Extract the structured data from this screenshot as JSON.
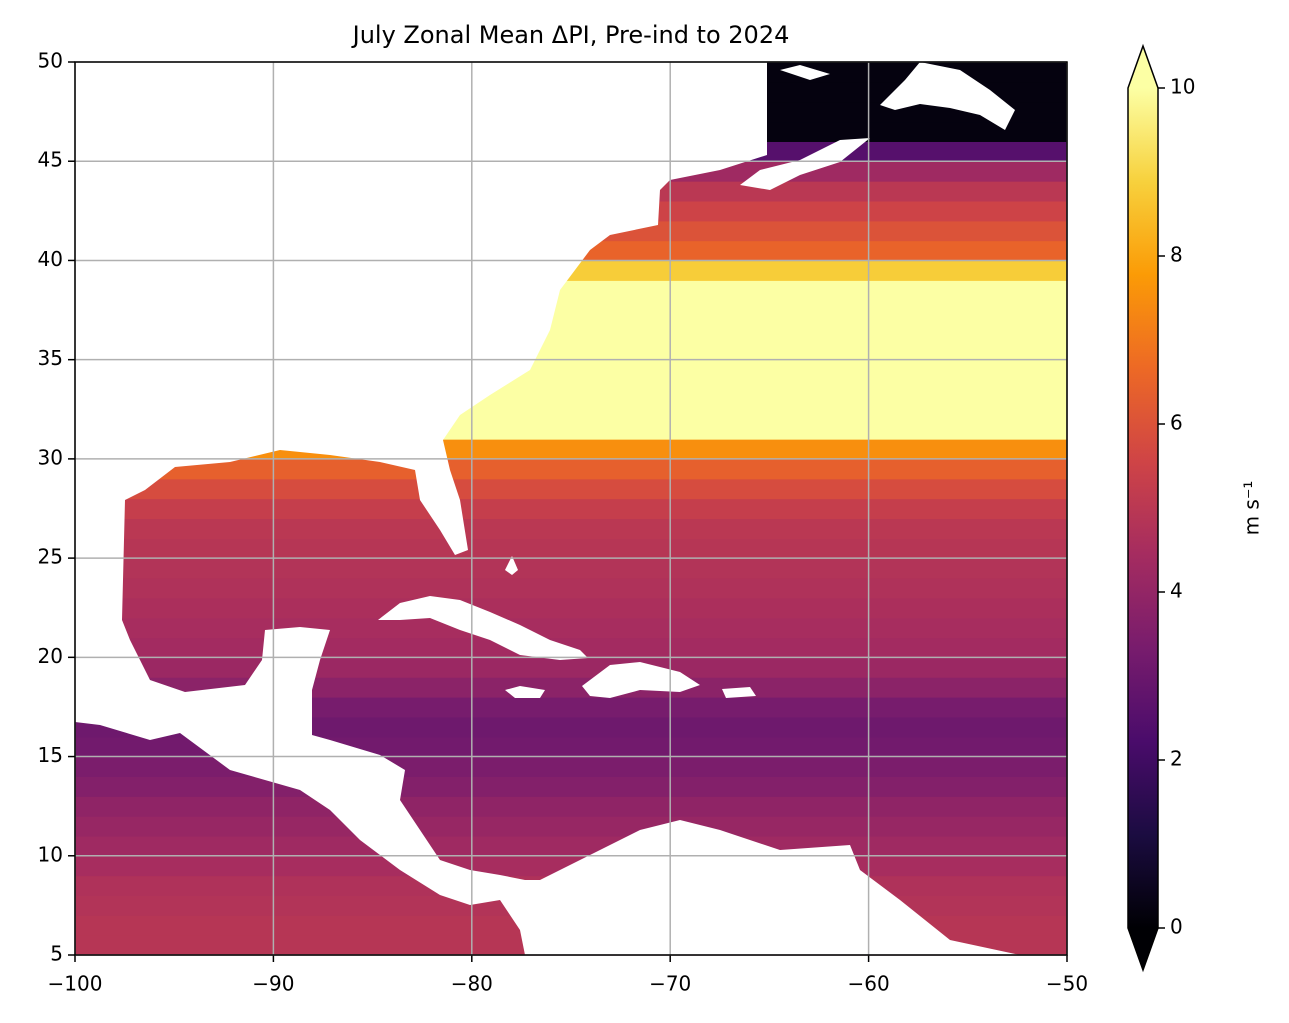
{
  "chart_data": {
    "type": "zonal_heatmap",
    "title": "July Zonal Mean ΔPI, Pre-ind to 2024",
    "lat_bins": [
      5,
      6,
      7,
      8,
      9,
      10,
      11,
      12,
      13,
      14,
      15,
      16,
      17,
      18,
      19,
      20,
      21,
      22,
      23,
      24,
      25,
      26,
      27,
      28,
      29,
      30,
      31,
      32,
      33,
      34,
      35,
      36,
      37,
      38,
      39,
      40,
      41,
      42,
      43,
      44,
      45,
      46,
      47,
      48,
      49,
      50
    ],
    "values": [
      4.9,
      4.9,
      4.8,
      4.7,
      4.5,
      4.3,
      4.1,
      3.9,
      3.6,
      3.4,
      3.2,
      3.1,
      3.3,
      3.8,
      4.2,
      4.4,
      4.5,
      4.6,
      4.7,
      4.8,
      4.9,
      5.0,
      5.3,
      5.8,
      6.4,
      7.5,
      10.5,
      10.5,
      10.5,
      10.5,
      10.5,
      10.5,
      10.5,
      10.5,
      8.8,
      6.5,
      6.0,
      5.5,
      5.0,
      4.3,
      2.5,
      0.2,
      0.2,
      0.2,
      0.2
    ],
    "xlim": [
      -100,
      -50
    ],
    "xticks": [
      {
        "value": -100,
        "label": "−100"
      },
      {
        "value": -90,
        "label": "−90"
      },
      {
        "value": -80,
        "label": "−80"
      },
      {
        "value": -70,
        "label": "−70"
      },
      {
        "value": -60,
        "label": "−60"
      },
      {
        "value": -50,
        "label": "−50"
      }
    ],
    "ylim": [
      5,
      50
    ],
    "yticks": [
      5,
      10,
      15,
      20,
      25,
      30,
      35,
      40,
      45,
      50
    ],
    "grid": true,
    "colormap": "inferno",
    "clim": [
      0,
      10
    ],
    "colorbar_ticks": [
      0,
      2,
      4,
      6,
      8,
      10
    ],
    "colorbar_label": "m s⁻¹",
    "colorbar_extend": "both"
  }
}
